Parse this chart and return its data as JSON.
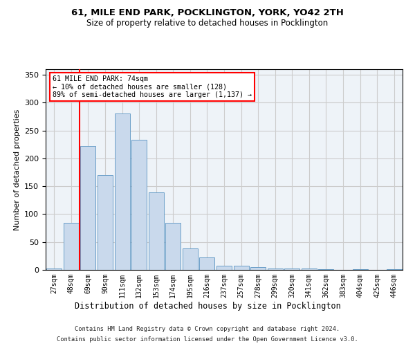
{
  "title": "61, MILE END PARK, POCKLINGTON, YORK, YO42 2TH",
  "subtitle": "Size of property relative to detached houses in Pocklington",
  "xlabel": "Distribution of detached houses by size in Pocklington",
  "ylabel": "Number of detached properties",
  "footer_line1": "Contains HM Land Registry data © Crown copyright and database right 2024.",
  "footer_line2": "Contains public sector information licensed under the Open Government Licence v3.0.",
  "bar_labels": [
    "27sqm",
    "48sqm",
    "69sqm",
    "90sqm",
    "111sqm",
    "132sqm",
    "153sqm",
    "174sqm",
    "195sqm",
    "216sqm",
    "237sqm",
    "257sqm",
    "278sqm",
    "299sqm",
    "320sqm",
    "341sqm",
    "362sqm",
    "383sqm",
    "404sqm",
    "425sqm",
    "446sqm"
  ],
  "bar_values": [
    2,
    85,
    222,
    170,
    280,
    233,
    139,
    85,
    38,
    22,
    8,
    7,
    5,
    3,
    2,
    2,
    1,
    0,
    1,
    0,
    1
  ],
  "bar_color": "#c9d9ec",
  "bar_edge_color": "#6a9ec8",
  "ylim": [
    0,
    360
  ],
  "yticks": [
    0,
    50,
    100,
    150,
    200,
    250,
    300,
    350
  ],
  "vline_x": 1.5,
  "property_label": "61 MILE END PARK: 74sqm",
  "annotation_line1": "← 10% of detached houses are smaller (128)",
  "annotation_line2": "89% of semi-detached houses are larger (1,137) →",
  "grid_color": "#cccccc",
  "background_color": "#ffffff",
  "plot_bg_color": "#eef3f8"
}
